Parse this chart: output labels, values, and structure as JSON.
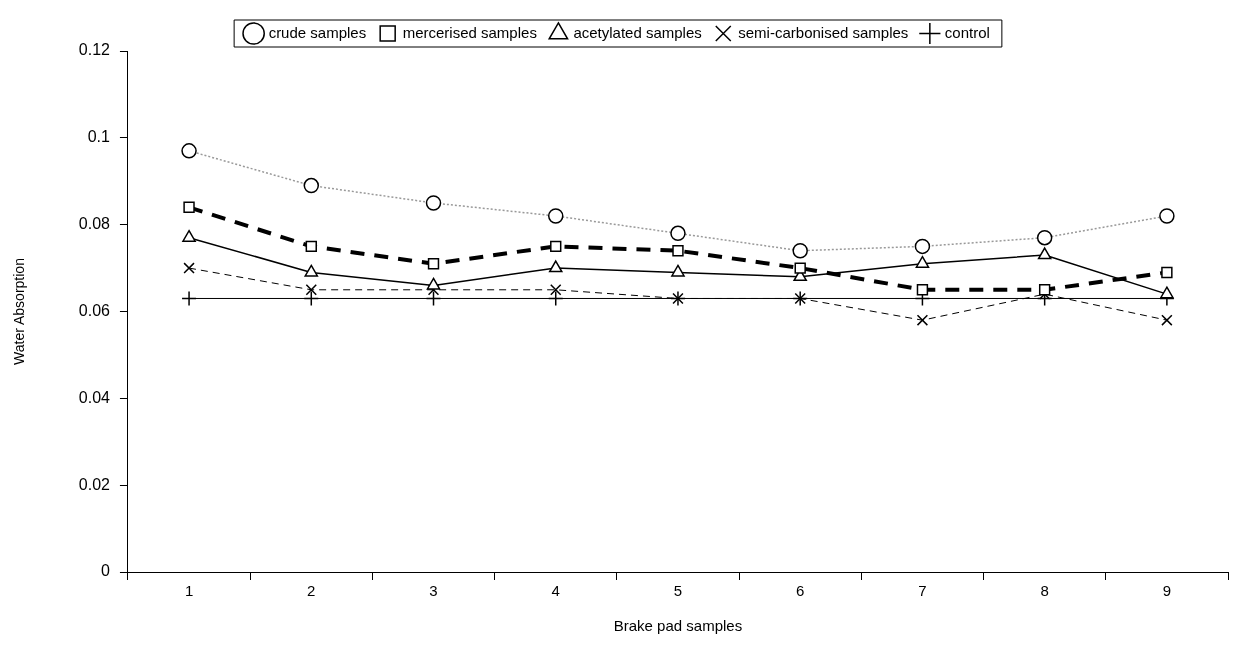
{
  "chart_data": {
    "type": "line",
    "xlabel": "Brake pad samples",
    "ylabel": "Water Absorption",
    "categories": [
      "1",
      "2",
      "3",
      "4",
      "5",
      "6",
      "7",
      "8",
      "9"
    ],
    "ylim": [
      0,
      0.12
    ],
    "yticks": [
      0,
      0.02,
      0.04,
      0.06,
      0.08,
      {
        "value": 0.1,
        "label": "0.1"
      },
      0.12
    ],
    "grid": false,
    "legend": "top",
    "series": [
      {
        "name": "crude samples",
        "color": "#999999",
        "marker": "circle",
        "line_style": "dotted",
        "values": [
          0.097,
          0.089,
          0.085,
          0.082,
          0.078,
          0.074,
          0.075,
          0.077,
          0.082
        ]
      },
      {
        "name": "mercerised samples",
        "color": "#000000",
        "marker": "square",
        "line_style": "dashed",
        "values": [
          0.084,
          0.075,
          0.071,
          0.075,
          0.074,
          0.07,
          0.065,
          0.065,
          0.069
        ]
      },
      {
        "name": "acetylated samples",
        "color": "#000000",
        "marker": "triangle",
        "line_style": "solid",
        "values": [
          0.077,
          0.069,
          0.066,
          0.07,
          0.069,
          0.068,
          0.071,
          0.073,
          0.064
        ]
      },
      {
        "name": "semi-carbonised samples",
        "color": "#000000",
        "marker": "cross",
        "line_style": "dashed",
        "values": [
          0.07,
          0.065,
          0.065,
          0.065,
          0.063,
          0.063,
          0.058,
          0.064,
          0.058
        ]
      },
      {
        "name": "control",
        "color": "#000000",
        "marker": "plus",
        "line_style": "solid",
        "values": [
          0.063,
          0.063,
          0.063,
          0.063,
          0.063,
          0.063,
          0.063,
          0.063,
          0.063
        ]
      }
    ]
  }
}
